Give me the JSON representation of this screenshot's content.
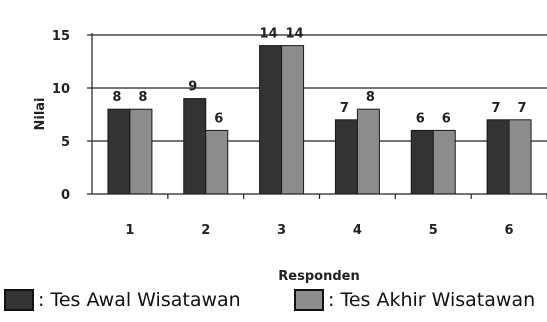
{
  "chart_data": {
    "type": "bar",
    "categories": [
      "1",
      "2",
      "3",
      "4",
      "5",
      "6"
    ],
    "series": [
      {
        "name": "Tes Awal Wisatawan",
        "values": [
          8,
          9,
          14,
          7,
          6,
          7
        ],
        "color": "#333333"
      },
      {
        "name": "Tes Akhir Wisatawan",
        "values": [
          8,
          6,
          14,
          8,
          6,
          7
        ],
        "color": "#8c8c8c"
      }
    ],
    "data_labels": [
      [
        "8",
        "9",
        "14",
        "7",
        "6",
        "7"
      ],
      [
        "8",
        "6",
        "14",
        "8",
        "6",
        "7"
      ]
    ],
    "title": "",
    "xlabel": "Responden",
    "ylabel": "Nilai",
    "ylim": [
      0,
      15
    ],
    "yticks": [
      "0",
      "5",
      "10",
      "15"
    ],
    "grid": true
  },
  "legend": {
    "items": [
      {
        "text": ": Tes Awal Wisatawan",
        "color": "#333333"
      },
      {
        "text": ": Tes Akhir Wisatawan",
        "color": "#8c8c8c"
      }
    ]
  }
}
